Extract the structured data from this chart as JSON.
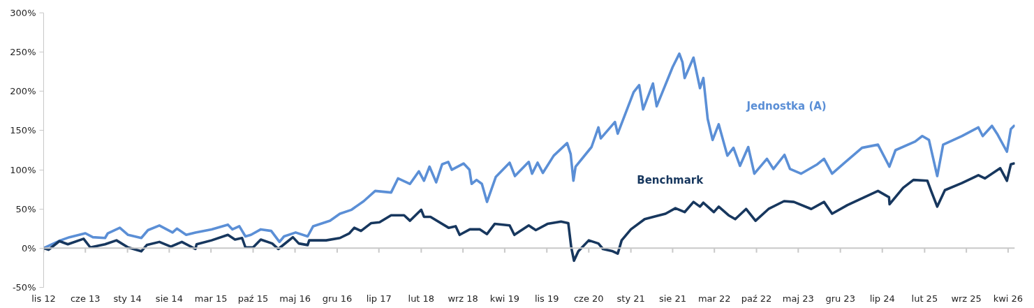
{
  "chart_data": {
    "type": "line",
    "ylim": [
      -50,
      300
    ],
    "yticks": [
      {
        "value": -50,
        "label": "-50%"
      },
      {
        "value": 0,
        "label": "0%"
      },
      {
        "value": 50,
        "label": "50%"
      },
      {
        "value": 100,
        "label": "100%"
      },
      {
        "value": 150,
        "label": "150%"
      },
      {
        "value": 200,
        "label": "200%"
      },
      {
        "value": 250,
        "label": "250%"
      },
      {
        "value": 300,
        "label": "300%"
      }
    ],
    "xlim": [
      "2012-11-01",
      "2026-05-05"
    ],
    "xticks": [
      {
        "value": "2012-11-01",
        "label": "lis 12"
      },
      {
        "value": "2013-06-01",
        "label": "cze 13"
      },
      {
        "value": "2014-01-01",
        "label": "sty 14"
      },
      {
        "value": "2014-08-01",
        "label": "sie 14"
      },
      {
        "value": "2015-03-01",
        "label": "mar 15"
      },
      {
        "value": "2015-10-01",
        "label": "paź 15"
      },
      {
        "value": "2016-05-01",
        "label": "maj 16"
      },
      {
        "value": "2016-12-01",
        "label": "gru 16"
      },
      {
        "value": "2017-07-01",
        "label": "lip 17"
      },
      {
        "value": "2018-02-01",
        "label": "lut 18"
      },
      {
        "value": "2018-09-01",
        "label": "wrz 18"
      },
      {
        "value": "2019-04-01",
        "label": "kwi 19"
      },
      {
        "value": "2019-11-01",
        "label": "lis 19"
      },
      {
        "value": "2020-06-01",
        "label": "cze 20"
      },
      {
        "value": "2021-01-01",
        "label": "sty 21"
      },
      {
        "value": "2021-08-01",
        "label": "sie 21"
      },
      {
        "value": "2022-03-01",
        "label": "mar 22"
      },
      {
        "value": "2022-10-01",
        "label": "paź 22"
      },
      {
        "value": "2023-05-01",
        "label": "maj 23"
      },
      {
        "value": "2023-12-01",
        "label": "gru 23"
      },
      {
        "value": "2024-07-01",
        "label": "lip 24"
      },
      {
        "value": "2025-02-01",
        "label": "lut 25"
      },
      {
        "value": "2025-09-01",
        "label": "wrz 25"
      },
      {
        "value": "2026-04-01",
        "label": "kwi 26"
      }
    ],
    "grid": false,
    "legend": false,
    "ref_lines": [
      {
        "axis": "y",
        "value": 0,
        "color": "#c8c8c8"
      }
    ],
    "marker": "none",
    "line_style": "solid",
    "series": [
      {
        "name": "Jednostka (A)",
        "color": "#5b8fd6",
        "x": [
          "2012-11-01",
          "2013-01-26",
          "2013-03-12",
          "2013-06-01",
          "2013-07-09",
          "2013-09-09",
          "2013-09-23",
          "2013-11-23",
          "2014-01-04",
          "2014-03-12",
          "2014-04-15",
          "2014-06-12",
          "2014-08-18",
          "2014-09-09",
          "2014-10-26",
          "2014-12-12",
          "2015-03-04",
          "2015-05-26",
          "2015-06-18",
          "2015-07-23",
          "2015-08-23",
          "2015-09-20",
          "2015-11-09",
          "2016-01-01",
          "2016-02-12",
          "2016-03-06",
          "2016-05-04",
          "2016-07-04",
          "2016-08-01",
          "2016-10-26",
          "2016-12-15",
          "2017-02-12",
          "2017-04-15",
          "2017-06-12",
          "2017-09-01",
          "2017-10-06",
          "2017-12-06",
          "2018-01-20",
          "2018-02-15",
          "2018-03-15",
          "2018-04-18",
          "2018-05-18",
          "2018-06-18",
          "2018-07-06",
          "2018-09-04",
          "2018-10-04",
          "2018-10-15",
          "2018-11-09",
          "2018-12-06",
          "2019-01-01",
          "2019-02-15",
          "2019-04-26",
          "2019-05-23",
          "2019-08-01",
          "2019-08-18",
          "2019-09-15",
          "2019-10-12",
          "2019-12-06",
          "2020-02-12",
          "2020-03-01",
          "2020-03-15",
          "2020-03-26",
          "2020-06-15",
          "2020-07-20",
          "2020-08-01",
          "2020-10-12",
          "2020-10-26",
          "2021-01-15",
          "2021-02-12",
          "2021-03-04",
          "2021-04-23",
          "2021-05-12",
          "2021-08-01",
          "2021-09-04",
          "2021-09-20",
          "2021-10-01",
          "2021-11-15",
          "2021-12-18",
          "2022-01-04",
          "2022-01-26",
          "2022-02-20",
          "2022-03-23",
          "2022-05-06",
          "2022-06-06",
          "2022-07-09",
          "2022-08-20",
          "2022-09-20",
          "2022-11-23",
          "2022-12-26",
          "2023-02-20",
          "2023-03-20",
          "2023-05-15",
          "2023-08-06",
          "2023-09-09",
          "2023-10-20",
          "2023-12-23",
          "2024-03-20",
          "2024-06-09",
          "2024-08-06",
          "2024-09-06",
          "2024-12-15",
          "2025-01-20",
          "2025-02-23",
          "2025-04-06",
          "2025-05-06",
          "2025-08-09",
          "2025-11-01",
          "2025-11-23",
          "2026-01-09",
          "2026-02-04",
          "2026-03-26",
          "2026-04-15",
          "2026-05-01"
        ],
        "values": [
          0,
          10,
          14,
          19,
          14,
          13,
          19,
          26,
          17,
          13,
          23,
          29,
          20,
          25,
          17,
          20,
          24,
          30,
          24,
          28,
          15,
          17,
          24,
          22,
          8,
          15,
          20,
          15,
          28,
          35,
          44,
          49,
          60,
          73,
          71,
          89,
          82,
          98,
          86,
          104,
          84,
          107,
          110,
          100,
          108,
          100,
          82,
          87,
          82,
          59,
          91,
          109,
          92,
          110,
          95,
          109,
          96,
          118,
          134,
          120,
          86,
          104,
          129,
          154,
          140,
          161,
          146,
          199,
          208,
          177,
          210,
          181,
          231,
          248,
          237,
          217,
          243,
          204,
          217,
          165,
          138,
          158,
          118,
          128,
          105,
          129,
          95,
          114,
          101,
          119,
          101,
          95,
          107,
          114,
          95,
          109,
          128,
          132,
          104,
          125,
          136,
          143,
          138,
          92,
          132,
          143,
          154,
          143,
          156,
          146,
          123,
          152,
          156
        ]
      },
      {
        "name": "Benchmark",
        "color": "#17375e",
        "x": [
          "2012-11-01",
          "2012-11-26",
          "2013-01-20",
          "2013-03-04",
          "2013-05-23",
          "2013-06-26",
          "2013-09-09",
          "2013-11-06",
          "2014-01-04",
          "2014-03-12",
          "2014-04-09",
          "2014-06-12",
          "2014-08-09",
          "2014-10-04",
          "2014-12-12",
          "2014-12-18",
          "2015-03-04",
          "2015-05-26",
          "2015-07-01",
          "2015-08-06",
          "2015-08-23",
          "2015-10-01",
          "2015-11-09",
          "2016-01-06",
          "2016-02-06",
          "2016-04-20",
          "2016-05-20",
          "2016-07-04",
          "2016-07-12",
          "2016-10-06",
          "2016-12-15",
          "2017-02-01",
          "2017-02-26",
          "2017-04-01",
          "2017-05-23",
          "2017-07-04",
          "2017-09-01",
          "2017-11-06",
          "2017-12-06",
          "2018-02-01",
          "2018-02-15",
          "2018-03-20",
          "2018-06-20",
          "2018-07-26",
          "2018-08-15",
          "2018-10-06",
          "2018-11-26",
          "2019-01-01",
          "2019-02-09",
          "2019-04-26",
          "2019-05-20",
          "2019-08-01",
          "2019-09-06",
          "2019-11-04",
          "2020-01-12",
          "2020-02-18",
          "2020-03-04",
          "2020-03-18",
          "2020-04-09",
          "2020-06-01",
          "2020-07-20",
          "2020-08-12",
          "2020-10-01",
          "2020-10-26",
          "2020-11-15",
          "2021-01-01",
          "2021-03-12",
          "2021-05-12",
          "2021-06-26",
          "2021-08-15",
          "2021-10-01",
          "2021-11-15",
          "2021-12-18",
          "2022-01-04",
          "2022-02-26",
          "2022-03-23",
          "2022-05-12",
          "2022-06-15",
          "2022-08-09",
          "2022-09-26",
          "2022-12-01",
          "2023-02-18",
          "2023-04-09",
          "2023-07-06",
          "2023-09-09",
          "2023-10-20",
          "2024-01-06",
          "2024-04-01",
          "2024-06-09",
          "2024-08-04",
          "2024-08-07",
          "2024-10-15",
          "2024-12-06",
          "2025-02-15",
          "2025-03-06",
          "2025-04-06",
          "2025-05-15",
          "2025-08-09",
          "2025-11-01",
          "2025-12-04",
          "2026-02-20",
          "2026-03-26",
          "2026-04-15",
          "2026-05-01"
        ],
        "values": [
          0,
          -2,
          9,
          5,
          12,
          1,
          5,
          10,
          1,
          -4,
          4,
          8,
          2,
          8,
          -1,
          5,
          10,
          17,
          11,
          13,
          1,
          1,
          11,
          6,
          -1,
          14,
          6,
          4,
          10,
          10,
          13,
          19,
          26,
          22,
          32,
          33,
          42,
          42,
          35,
          49,
          40,
          40,
          26,
          28,
          17,
          24,
          24,
          18,
          31,
          29,
          17,
          29,
          23,
          31,
          34,
          32,
          1,
          -16,
          -4,
          10,
          6,
          -1,
          -4,
          -7,
          10,
          24,
          37,
          41,
          44,
          51,
          46,
          59,
          53,
          58,
          46,
          53,
          42,
          37,
          50,
          35,
          50,
          60,
          59,
          50,
          59,
          44,
          55,
          65,
          73,
          65,
          56,
          77,
          87,
          86,
          73,
          53,
          74,
          83,
          93,
          89,
          102,
          86,
          107,
          108
        ]
      }
    ]
  }
}
